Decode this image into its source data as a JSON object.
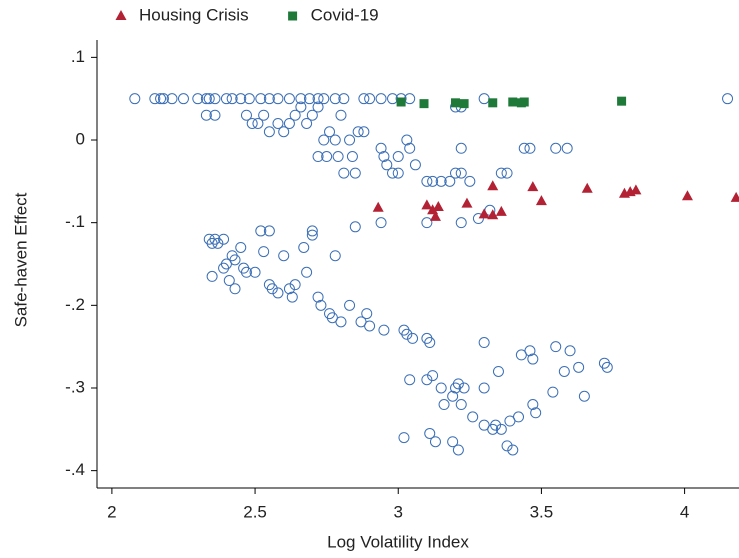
{
  "chart_data": {
    "type": "scatter",
    "x_label": "Log Volatility Index",
    "y_label": "Safe-haven Effect",
    "xlim": [
      1.948,
      4.19
    ],
    "ylim": [
      -0.421,
      0.121
    ],
    "xticks": [
      2,
      2.5,
      3,
      3.5,
      4
    ],
    "yticks": [
      {
        "value": 0.1,
        "label": ".1"
      },
      0,
      {
        "value": -0.1,
        "label": "-.1"
      },
      {
        "value": -0.2,
        "label": "-.2"
      },
      {
        "value": -0.3,
        "label": "-.3"
      },
      {
        "value": -0.4,
        "label": "-.4"
      }
    ],
    "legend_position": "top",
    "series": [
      {
        "color": "#3b6fb6",
        "marker": "circle",
        "x": [
          2.08,
          2.15,
          2.17,
          2.18,
          2.21,
          2.25,
          2.3,
          2.33,
          2.34,
          2.36,
          2.4,
          2.42,
          2.45,
          2.48,
          2.52,
          2.55,
          2.58,
          2.62,
          2.66,
          2.69,
          2.72,
          2.74,
          2.78,
          2.81,
          2.88,
          2.9,
          2.94,
          2.98,
          3.01,
          3.04,
          3.3,
          4.15,
          2.33,
          2.36,
          2.47,
          2.49,
          2.51,
          2.53,
          2.55,
          2.58,
          2.6,
          2.62,
          2.64,
          2.66,
          2.68,
          2.7,
          2.72,
          2.74,
          2.76,
          2.78,
          2.8,
          2.72,
          2.75,
          2.79,
          2.81,
          2.85,
          2.83,
          2.86,
          2.88,
          2.84,
          2.94,
          2.96,
          2.98,
          3.0,
          3.03,
          3.04,
          3.06,
          3.1,
          3.12,
          3.15,
          3.18,
          3.2,
          3.22,
          3.25,
          3.22,
          3.36,
          3.38,
          3.44,
          3.46,
          3.55,
          3.59,
          3.2,
          3.22,
          2.95,
          3.0,
          3.1,
          2.94,
          3.22,
          3.28,
          3.32,
          2.85,
          2.34,
          2.35,
          2.36,
          2.37,
          2.39,
          2.4,
          2.42,
          2.43,
          2.45,
          2.46,
          2.47,
          2.5,
          2.52,
          2.55,
          2.53,
          2.55,
          2.56,
          2.58,
          2.6,
          2.62,
          2.64,
          2.63,
          2.68,
          2.67,
          2.7,
          2.7,
          2.72,
          2.73,
          2.76,
          2.77,
          2.78,
          2.8,
          2.83,
          2.35,
          2.39,
          2.41,
          2.43,
          2.87,
          2.89,
          2.9,
          2.95,
          3.02,
          3.03,
          3.05,
          3.1,
          3.11,
          3.3,
          3.04,
          3.1,
          3.12,
          3.15,
          3.2,
          3.21,
          3.19,
          3.22,
          3.16,
          3.26,
          3.3,
          3.33,
          3.34,
          3.36,
          3.39,
          3.42,
          3.3,
          3.35,
          3.43,
          3.46,
          3.47,
          3.55,
          3.6,
          3.63,
          3.58,
          3.72,
          3.73,
          3.65,
          3.54,
          3.47,
          3.48,
          3.02,
          3.11,
          3.13,
          3.19,
          3.21,
          3.38,
          3.4,
          3.23
        ],
        "values": [
          0.05,
          0.05,
          0.05,
          0.05,
          0.05,
          0.05,
          0.05,
          0.05,
          0.05,
          0.05,
          0.05,
          0.05,
          0.05,
          0.05,
          0.05,
          0.05,
          0.05,
          0.05,
          0.05,
          0.05,
          0.05,
          0.05,
          0.05,
          0.05,
          0.05,
          0.05,
          0.05,
          0.05,
          0.05,
          0.05,
          0.05,
          0.05,
          0.03,
          0.03,
          0.03,
          0.02,
          0.02,
          0.03,
          0.01,
          0.02,
          0.01,
          0.02,
          0.03,
          0.04,
          0.02,
          0.03,
          0.04,
          0.0,
          0.01,
          0.0,
          0.03,
          -0.02,
          -0.02,
          -0.02,
          -0.04,
          -0.04,
          0.0,
          0.01,
          0.01,
          -0.02,
          -0.01,
          -0.03,
          -0.04,
          -0.04,
          0.0,
          -0.01,
          -0.03,
          -0.05,
          -0.05,
          -0.05,
          -0.05,
          -0.04,
          -0.04,
          -0.05,
          -0.01,
          -0.04,
          -0.04,
          -0.01,
          -0.01,
          -0.01,
          -0.01,
          0.04,
          0.04,
          -0.02,
          -0.02,
          -0.1,
          -0.1,
          -0.1,
          -0.095,
          -0.085,
          -0.105,
          -0.12,
          -0.125,
          -0.12,
          -0.125,
          -0.12,
          -0.15,
          -0.14,
          -0.145,
          -0.13,
          -0.155,
          -0.16,
          -0.16,
          -0.11,
          -0.11,
          -0.135,
          -0.175,
          -0.18,
          -0.185,
          -0.14,
          -0.18,
          -0.175,
          -0.19,
          -0.16,
          -0.13,
          -0.11,
          -0.115,
          -0.19,
          -0.2,
          -0.21,
          -0.215,
          -0.14,
          -0.22,
          -0.2,
          -0.165,
          -0.155,
          -0.17,
          -0.18,
          -0.22,
          -0.21,
          -0.225,
          -0.23,
          -0.23,
          -0.235,
          -0.24,
          -0.24,
          -0.245,
          -0.245,
          -0.29,
          -0.29,
          -0.285,
          -0.3,
          -0.3,
          -0.295,
          -0.31,
          -0.32,
          -0.32,
          -0.335,
          -0.345,
          -0.35,
          -0.345,
          -0.35,
          -0.34,
          -0.335,
          -0.3,
          -0.28,
          -0.26,
          -0.255,
          -0.265,
          -0.25,
          -0.255,
          -0.275,
          -0.28,
          -0.27,
          -0.275,
          -0.31,
          -0.305,
          -0.32,
          -0.33,
          -0.36,
          -0.355,
          -0.365,
          -0.365,
          -0.375,
          -0.37,
          -0.375,
          -0.3
        ]
      },
      {
        "name": "Housing Crisis",
        "color": "#b22234",
        "marker": "triangle",
        "x": [
          2.93,
          3.1,
          3.12,
          3.14,
          3.13,
          3.24,
          3.3,
          3.33,
          3.36,
          3.33,
          3.47,
          3.5,
          3.66,
          3.79,
          3.81,
          3.83,
          4.01,
          4.18
        ],
        "values": [
          -0.082,
          -0.079,
          -0.085,
          -0.081,
          -0.093,
          -0.077,
          -0.09,
          -0.091,
          -0.087,
          -0.056,
          -0.057,
          -0.074,
          -0.059,
          -0.065,
          -0.063,
          -0.061,
          -0.068,
          -0.07
        ]
      },
      {
        "name": "Covid-19",
        "color": "#1f7a3a",
        "marker": "square",
        "x": [
          3.01,
          3.09,
          3.2,
          3.23,
          3.33,
          3.4,
          3.43,
          3.44,
          3.78
        ],
        "values": [
          0.046,
          0.044,
          0.045,
          0.044,
          0.045,
          0.046,
          0.045,
          0.046,
          0.047
        ]
      }
    ]
  }
}
